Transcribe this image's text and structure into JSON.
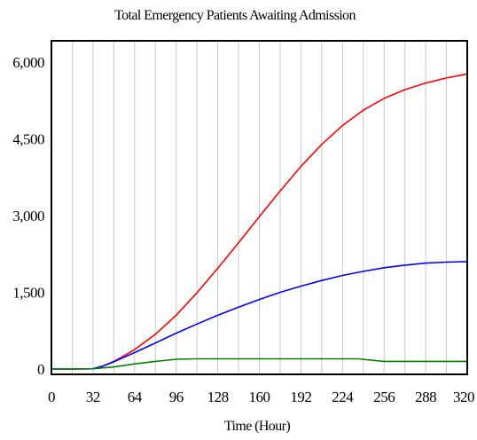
{
  "chart_data": {
    "type": "line",
    "title": "Total Emergency Patients Awaiting Admission",
    "xlabel": "Time (Hour)",
    "ylabel": "",
    "xlim": [
      0,
      320
    ],
    "ylim": [
      0,
      6000
    ],
    "x_ticks": [
      0,
      32,
      64,
      96,
      128,
      160,
      192,
      224,
      256,
      288,
      320
    ],
    "x_tick_labels": [
      "0",
      "32",
      "64",
      "96",
      "128",
      "160",
      "192",
      "224",
      "256",
      "288",
      "320"
    ],
    "y_ticks": [
      0,
      1500,
      3000,
      4500,
      6000
    ],
    "y_tick_labels": [
      "0",
      "1,500",
      "3,000",
      "4,500",
      "6,000"
    ],
    "grid": true,
    "legend": "none",
    "series": [
      {
        "color": "#ff0000",
        "x": [
          0,
          16,
          32,
          40,
          48,
          56,
          64,
          80,
          96,
          112,
          128,
          144,
          160,
          176,
          192,
          208,
          224,
          240,
          256,
          272,
          288,
          304,
          320
        ],
        "y": [
          0,
          0,
          5,
          60,
          150,
          260,
          380,
          680,
          1050,
          1490,
          1970,
          2470,
          2980,
          3480,
          3960,
          4390,
          4760,
          5060,
          5290,
          5460,
          5590,
          5690,
          5770
        ]
      },
      {
        "color": "#0000ff",
        "x": [
          0,
          16,
          32,
          40,
          48,
          56,
          64,
          80,
          96,
          112,
          128,
          144,
          160,
          176,
          192,
          208,
          224,
          240,
          256,
          272,
          288,
          304,
          320
        ],
        "y": [
          0,
          0,
          5,
          60,
          140,
          230,
          320,
          510,
          700,
          880,
          1050,
          1210,
          1360,
          1500,
          1620,
          1730,
          1830,
          1910,
          1980,
          2030,
          2070,
          2090,
          2100
        ]
      },
      {
        "color": "#008000",
        "x": [
          0,
          16,
          32,
          48,
          64,
          80,
          96,
          112,
          128,
          160,
          192,
          224,
          236,
          256,
          272,
          288,
          304,
          320
        ],
        "y": [
          0,
          0,
          5,
          40,
          100,
          150,
          190,
          200,
          200,
          200,
          200,
          200,
          200,
          150,
          150,
          150,
          150,
          150
        ]
      }
    ]
  }
}
